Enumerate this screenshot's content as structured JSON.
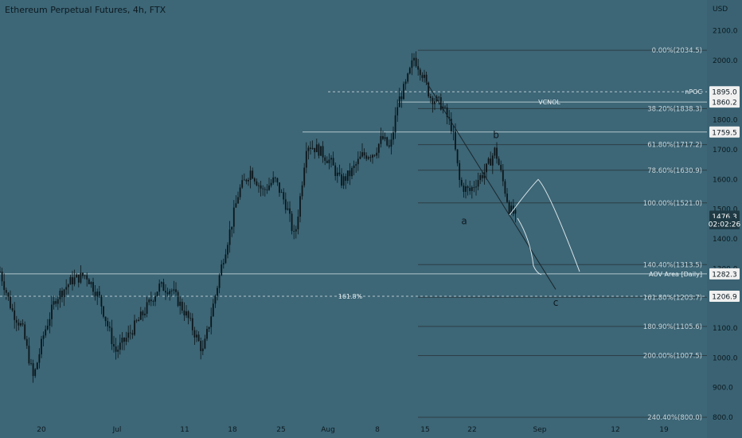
{
  "header": {
    "title": "Ethereum Perpetual Futures, 4h, FTX"
  },
  "chart_data": {
    "type": "candlestick",
    "title": "Ethereum Perpetual Futures, 4h, FTX",
    "y_unit": "USD",
    "ylim": [
      770,
      2160
    ],
    "y_ticks": [
      "2100.0",
      "2000.0",
      "1900.0",
      "1800.0",
      "1700.0",
      "1600.0",
      "1500.0",
      "1400.0",
      "1300.0",
      "1100.0",
      "1000.0",
      "900.0",
      "800.0"
    ],
    "x_ticks": [
      "20",
      "Jul",
      "11",
      "18",
      "25",
      "Aug",
      "8",
      "15",
      "22",
      "Sep",
      "12",
      "19"
    ],
    "price_path": [
      [
        0,
        1290
      ],
      [
        15,
        1160
      ],
      [
        28,
        1100
      ],
      [
        42,
        930
      ],
      [
        55,
        1080
      ],
      [
        70,
        1200
      ],
      [
        90,
        1260
      ],
      [
        108,
        1280
      ],
      [
        125,
        1200
      ],
      [
        145,
        1020
      ],
      [
        160,
        1070
      ],
      [
        180,
        1150
      ],
      [
        200,
        1240
      ],
      [
        215,
        1230
      ],
      [
        235,
        1140
      ],
      [
        255,
        1020
      ],
      [
        268,
        1180
      ],
      [
        280,
        1330
      ],
      [
        290,
        1440
      ],
      [
        300,
        1560
      ],
      [
        315,
        1630
      ],
      [
        330,
        1560
      ],
      [
        345,
        1600
      ],
      [
        360,
        1510
      ],
      [
        370,
        1400
      ],
      [
        378,
        1560
      ],
      [
        385,
        1720
      ],
      [
        400,
        1700
      ],
      [
        415,
        1660
      ],
      [
        428,
        1590
      ],
      [
        440,
        1620
      ],
      [
        455,
        1680
      ],
      [
        470,
        1690
      ],
      [
        480,
        1740
      ],
      [
        490,
        1700
      ],
      [
        500,
        1860
      ],
      [
        510,
        1920
      ],
      [
        520,
        2010
      ],
      [
        530,
        1960
      ],
      [
        540,
        1880
      ],
      [
        555,
        1850
      ],
      [
        568,
        1770
      ],
      [
        578,
        1580
      ],
      [
        590,
        1560
      ],
      [
        600,
        1600
      ],
      [
        610,
        1630
      ],
      [
        622,
        1700
      ],
      [
        632,
        1590
      ],
      [
        640,
        1500
      ],
      [
        648,
        1476
      ]
    ],
    "fib_levels": [
      {
        "label": "0.00%(2034.5)",
        "value": 2034.5
      },
      {
        "label": "38.20%(1838.3)",
        "value": 1838.3
      },
      {
        "label": "61.80%(1717.2)",
        "value": 1717.2
      },
      {
        "label": "78.60%(1630.9)",
        "value": 1630.9
      },
      {
        "label": "100.00%(1521.0)",
        "value": 1521.0
      },
      {
        "label": "140.40%(1313.5)",
        "value": 1313.5
      },
      {
        "label": "161.80%(1203.7)",
        "value": 1203.7
      },
      {
        "label": "180.90%(1105.6)",
        "value": 1105.6
      },
      {
        "label": "200.00%(1007.5)",
        "value": 1007.5
      },
      {
        "label": "240.40%(800.0)",
        "value": 800.0
      }
    ],
    "horizontal_lines": [
      {
        "label": "nPOC",
        "value": 1895.0,
        "style": "dashed"
      },
      {
        "label": "VCNOL",
        "value": 1860.2,
        "style": "solid"
      },
      {
        "label": "",
        "value": 1759.5,
        "style": "solid"
      },
      {
        "label": "AOV Area [Daily]",
        "value": 1282.3,
        "style": "solid"
      },
      {
        "label": "161.8%",
        "value": 1206.9,
        "style": "dashed"
      }
    ],
    "wave_labels": [
      {
        "text": "a",
        "value": 1460
      },
      {
        "text": "b",
        "value": 1750
      },
      {
        "text": "c",
        "value": 1185
      }
    ],
    "price_tags": [
      {
        "text": "1895.0",
        "value": 1895.0
      },
      {
        "text": "1860.2",
        "value": 1860.2
      },
      {
        "text": "1759.5",
        "value": 1759.5
      },
      {
        "text": "1476.3",
        "value": 1476.3
      },
      {
        "text": "02:02:26",
        "value": 1451
      },
      {
        "text": "1282.3",
        "value": 1282.3
      },
      {
        "text": "1206.9",
        "value": 1206.9
      }
    ],
    "colors": {
      "background": "#3d6676",
      "candles": "#0b161b",
      "lines": "#2d3f47",
      "light": "#c8d8de",
      "tag_bg": "#f0f0f0"
    }
  }
}
